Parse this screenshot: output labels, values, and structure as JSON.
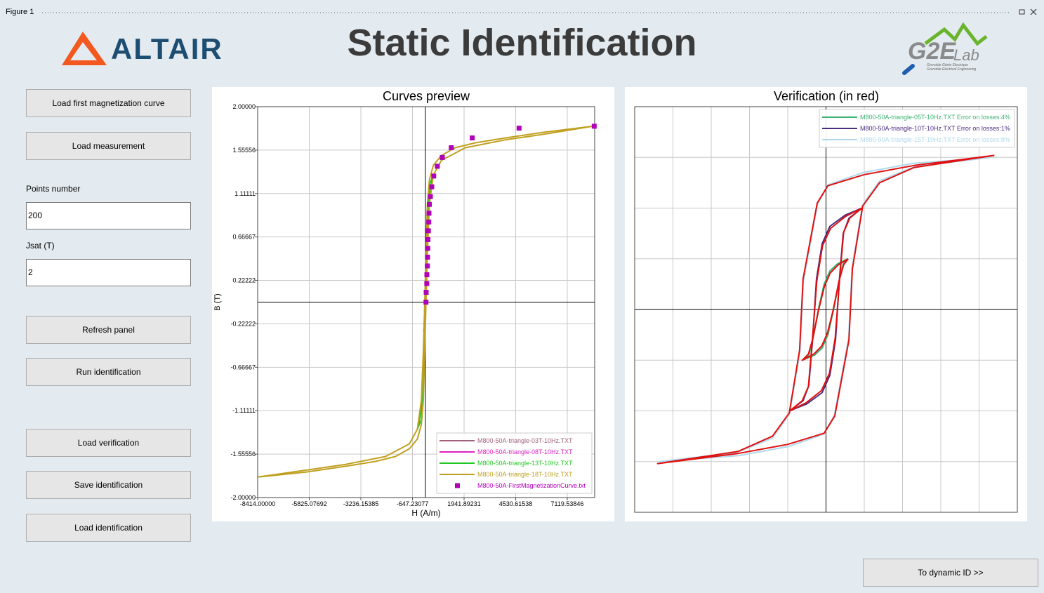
{
  "window": {
    "title": "Figure 1"
  },
  "header": {
    "title": "Static Identification",
    "logo_left": "ALTAIR",
    "logo_right": "G2E",
    "logo_right_sub": "Lab",
    "logo_right_lines": [
      "Grenoble Génie Electrique",
      "Grenoble Electrical Engineering"
    ]
  },
  "buttons": [
    "Load first magnetization curve",
    "Load measurement",
    "Refresh panel",
    "Run identification",
    "Load verification",
    "Save identification",
    "Load identification"
  ],
  "fields": [
    {
      "label": "Points number",
      "value": "200"
    },
    {
      "label": "Jsat (T)",
      "value": "2"
    }
  ],
  "footer_button": "To dynamic ID >>",
  "chart_data": [
    {
      "type": "line",
      "title": "Curves preview",
      "xlabel": "H (A/m)",
      "ylabel": "B (T)",
      "xlim": [
        -8414,
        8493
      ],
      "ylim": [
        -2,
        2
      ],
      "xticks": [
        {
          "value": -8414,
          "label": "-8414.00000"
        },
        {
          "value": -5825.07692,
          "label": "-5825.07692"
        },
        {
          "value": -3236.15385,
          "label": "-3236.15385"
        },
        {
          "value": -647.23077,
          "label": "-647.23077"
        },
        {
          "value": 1941.89231,
          "label": "1941.89231"
        },
        {
          "value": 4530.61538,
          "label": "4530.61538"
        },
        {
          "value": 7119.53846,
          "label": "7119.53846"
        }
      ],
      "yticks": [
        {
          "value": 2,
          "label": "2.00000"
        },
        {
          "value": 1.55556,
          "label": "1.55556"
        },
        {
          "value": 1.11111,
          "label": "1.11111"
        },
        {
          "value": 0.66667,
          "label": "0.66667"
        },
        {
          "value": 0.22222,
          "label": "0.22222"
        },
        {
          "value": -0.22222,
          "label": "-0.22222"
        },
        {
          "value": -0.66667,
          "label": "-0.66667"
        },
        {
          "value": -1.11111,
          "label": "-1.11111"
        },
        {
          "value": -1.55556,
          "label": "-1.55556"
        },
        {
          "value": -2,
          "label": "-2.00000"
        }
      ],
      "grid": true,
      "zero_lines": true,
      "show_tick_labels": true,
      "legend": "lower right",
      "series": [
        {
          "name": "M800-50A-triangle-03T-10Hz.TXT",
          "color": "#a0607c",
          "style": "line",
          "x": [
            80,
            40,
            10,
            -20,
            -50,
            -80,
            -40,
            -10,
            20,
            50,
            80
          ],
          "values": [
            0.3,
            0.25,
            0.1,
            -0.05,
            -0.2,
            -0.3,
            -0.25,
            -0.1,
            0.05,
            0.2,
            0.3
          ]
        },
        {
          "name": "M800-50A-triangle-08T-10Hz.TXT",
          "color": "#e020c0",
          "style": "line",
          "x": [
            150,
            100,
            50,
            0,
            -50,
            -100,
            -150,
            -100,
            -50,
            0,
            50,
            100,
            150
          ],
          "values": [
            0.8,
            0.7,
            0.45,
            0.1,
            -0.3,
            -0.6,
            -0.8,
            -0.7,
            -0.45,
            -0.1,
            0.3,
            0.6,
            0.8
          ]
        },
        {
          "name": "M800-50A-triangle-13T-10Hz.TXT",
          "color": "#22c822",
          "style": "line",
          "x": [
            400,
            200,
            100,
            20,
            -50,
            -120,
            -200,
            -400,
            -200,
            -100,
            -20,
            50,
            120,
            200,
            400
          ],
          "values": [
            1.3,
            1.2,
            0.9,
            0.3,
            -0.2,
            -0.7,
            -1.1,
            -1.3,
            -1.2,
            -0.9,
            -0.3,
            0.2,
            0.7,
            1.1,
            1.3
          ]
        },
        {
          "name": "M800-50A-triangle-18T-10Hz.TXT",
          "color": "#c0a020",
          "style": "line",
          "x": [
            8400,
            6000,
            4000,
            2500,
            1500,
            800,
            400,
            200,
            100,
            30,
            -30,
            -100,
            -200,
            -400,
            -800,
            -2000,
            -4000,
            -6000,
            -8414,
            -6000,
            -4000,
            -2500,
            -1500,
            -800,
            -400,
            -200,
            -100,
            -30,
            30,
            100,
            200,
            400,
            800,
            2000,
            4000,
            6000,
            8400
          ],
          "values": [
            1.8,
            1.74,
            1.68,
            1.63,
            1.58,
            1.5,
            1.4,
            1.25,
            1.0,
            0.5,
            0,
            -0.5,
            -1.0,
            -1.3,
            -1.45,
            -1.58,
            -1.66,
            -1.72,
            -1.79,
            -1.74,
            -1.68,
            -1.63,
            -1.58,
            -1.5,
            -1.4,
            -1.25,
            -1.0,
            -0.5,
            0,
            0.5,
            1.0,
            1.3,
            1.45,
            1.58,
            1.66,
            1.72,
            1.8
          ]
        },
        {
          "name": "M800-50A-FirstMagnetizationCurve.txt",
          "color": "#b000b8",
          "style": "markers",
          "x": [
            30,
            40,
            70,
            75,
            100,
            110,
            120,
            130,
            150,
            170,
            180,
            200,
            250,
            320,
            420,
            600,
            850,
            1300,
            2350,
            4700,
            8470
          ],
          "values": [
            0.0,
            0.1,
            0.19,
            0.28,
            0.37,
            0.46,
            0.55,
            0.64,
            0.73,
            0.82,
            0.91,
            1.0,
            1.08,
            1.18,
            1.29,
            1.39,
            1.48,
            1.58,
            1.68,
            1.78,
            1.8
          ]
        }
      ]
    },
    {
      "type": "line",
      "title": "Verification (in red)",
      "xlim": [
        -5000,
        5000
      ],
      "ylim": [
        -2,
        2
      ],
      "xticks": [
        -4000,
        -3000,
        -2000,
        -1000,
        0,
        1000,
        2000,
        3000,
        4000
      ],
      "yticks": [
        -1.5,
        -1,
        -0.5,
        0,
        0.5,
        1,
        1.5
      ],
      "grid": true,
      "zero_lines": true,
      "show_tick_labels": false,
      "legend": "upper right",
      "series": [
        {
          "name": "M800-50A-triangle-05T-10Hz.TXT Error on losses:4%",
          "color": "#3cb371",
          "style": "line",
          "x": [
            570,
            300,
            100,
            -50,
            -200,
            -350,
            -450,
            -620,
            -300,
            -100,
            50,
            200,
            350,
            450,
            570
          ],
          "values": [
            0.5,
            0.45,
            0.38,
            0.25,
            0,
            -0.3,
            -0.45,
            -0.5,
            -0.45,
            -0.38,
            -0.25,
            0,
            0.3,
            0.45,
            0.5
          ]
        },
        {
          "name": "M800-50A-triangle-10T-10Hz.TXT Error on losses:1%",
          "color": "#4b2c80",
          "style": "line",
          "x": [
            940,
            500,
            100,
            -100,
            -250,
            -350,
            -450,
            -600,
            -950,
            -500,
            -100,
            100,
            250,
            350,
            450,
            600,
            940
          ],
          "values": [
            1.0,
            0.93,
            0.82,
            0.65,
            0.3,
            -0.3,
            -0.75,
            -0.9,
            -1.0,
            -0.93,
            -0.82,
            -0.65,
            -0.3,
            0.3,
            0.75,
            0.9,
            1.0
          ]
        },
        {
          "name": "M800-50A-triangle-15T-10Hz.TXT Error on losses:8%",
          "color": "#b0d8ec",
          "style": "line",
          "x": [
            4310,
            2260,
            970,
            55,
            -220,
            -590,
            -680,
            -950,
            -1410,
            -2330,
            -4350,
            -2260,
            -970,
            -55,
            220,
            590,
            680,
            950,
            1410,
            2330,
            4310
          ],
          "values": [
            1.5,
            1.44,
            1.35,
            1.23,
            1.04,
            0.28,
            -0.41,
            -1.03,
            -1.27,
            -1.41,
            -1.5,
            -1.44,
            -1.35,
            -1.23,
            -1.04,
            -0.28,
            0.41,
            1.03,
            1.27,
            1.41,
            1.5
          ]
        },
        {
          "color": "#e01010",
          "style": "line",
          "x": [
            580,
            320,
            110,
            -40,
            -190,
            -340,
            -460,
            -620,
            -320,
            -110,
            40,
            190,
            340,
            460,
            580
          ],
          "values": [
            0.5,
            0.44,
            0.36,
            0.23,
            0,
            -0.28,
            -0.44,
            -0.5,
            -0.44,
            -0.36,
            -0.23,
            0,
            0.28,
            0.44,
            0.5
          ]
        },
        {
          "color": "#e01010",
          "style": "line",
          "x": [
            940,
            520,
            120,
            -90,
            -240,
            -360,
            -460,
            -620,
            -950,
            -520,
            -120,
            90,
            240,
            360,
            460,
            620,
            940
          ],
          "values": [
            1.0,
            0.92,
            0.8,
            0.63,
            0.28,
            -0.32,
            -0.76,
            -0.9,
            -1.0,
            -0.92,
            -0.8,
            -0.63,
            -0.28,
            0.32,
            0.76,
            0.9,
            1.0
          ]
        },
        {
          "color": "#e01010",
          "style": "line",
          "x": [
            4400,
            2300,
            1000,
            50,
            -230,
            -600,
            -690,
            -960,
            -1400,
            -2300,
            -4400,
            -2300,
            -1000,
            -50,
            230,
            600,
            690,
            960,
            1400,
            2300,
            4400
          ],
          "values": [
            1.52,
            1.42,
            1.33,
            1.22,
            1.05,
            0.3,
            -0.4,
            -1.02,
            -1.25,
            -1.4,
            -1.52,
            -1.42,
            -1.33,
            -1.22,
            -1.05,
            -0.3,
            0.4,
            1.02,
            1.25,
            1.4,
            1.52
          ]
        }
      ]
    }
  ]
}
